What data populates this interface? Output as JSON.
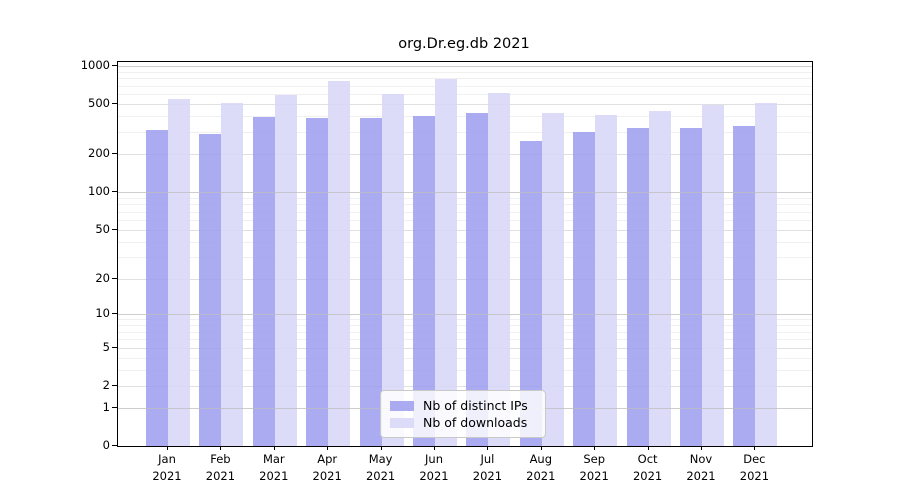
{
  "chart_data": {
    "type": "bar",
    "title": "org.Dr.eg.db 2021",
    "categories": [
      "Jan",
      "Feb",
      "Mar",
      "Apr",
      "May",
      "Jun",
      "Jul",
      "Aug",
      "Sep",
      "Oct",
      "Nov",
      "Dec"
    ],
    "category_year": "2021",
    "series": [
      {
        "name": "Nb of distinct IPs",
        "color": "#9999ee",
        "values": [
          315,
          290,
          394,
          388,
          392,
          407,
          425,
          257,
          301,
          323,
          322,
          336
        ]
      },
      {
        "name": "Nb of downloads",
        "color": "#d8d8f8",
        "values": [
          554,
          508,
          591,
          759,
          606,
          788,
          614,
          424,
          414,
          440,
          493,
          508
        ]
      }
    ],
    "yscale": "log1p",
    "ylim": [
      0,
      1080
    ],
    "yticks_major": [
      0,
      1,
      2,
      5,
      10,
      20,
      50,
      100,
      200,
      500,
      1000
    ],
    "yticks_minor": [
      3,
      4,
      6,
      7,
      8,
      9,
      30,
      40,
      60,
      70,
      80,
      90,
      300,
      400,
      600,
      700,
      800,
      900
    ],
    "grid": "on",
    "legend_position": "lower center",
    "colors": {
      "axis": "#000000",
      "gridline_power10": "#bdbdbd",
      "gridline_major": "#e0e0e0",
      "gridline_minor": "#f0f0f0"
    }
  }
}
